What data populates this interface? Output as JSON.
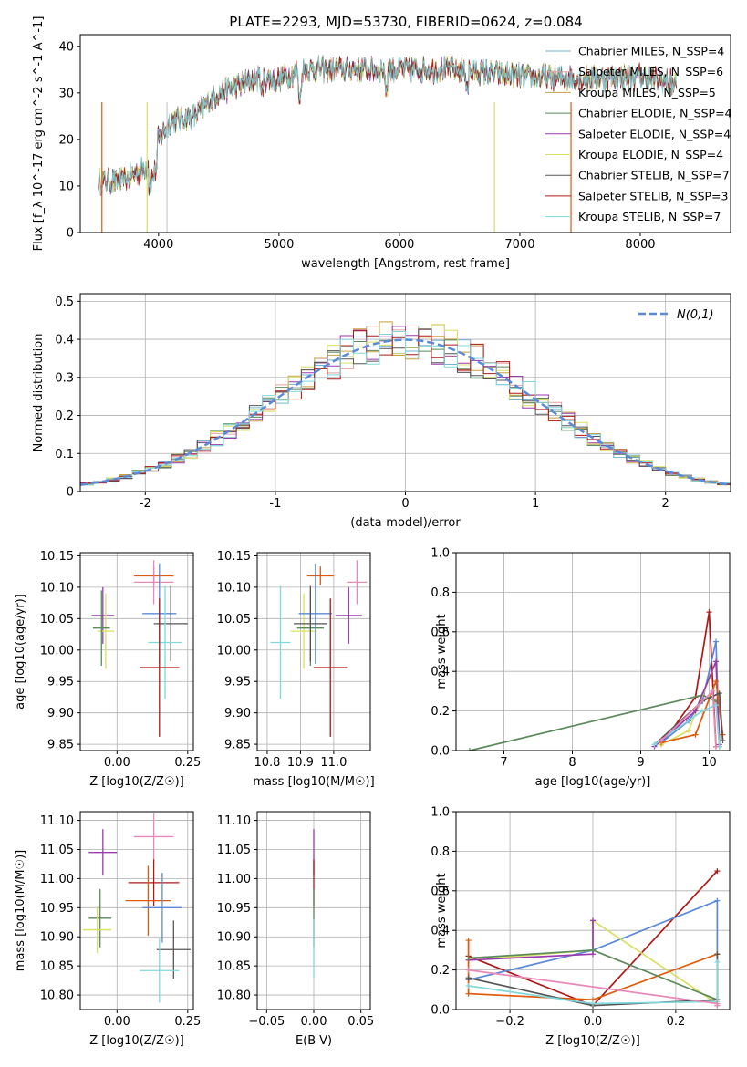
{
  "figure_title": "PLATE=2293, MJD=53730, FIBERID=0624, z=0.084",
  "colors": [
    "#72b6d2",
    "#e8a0a0",
    "#c8a040",
    "#5b8a5b",
    "#9a3ab0",
    "#d8e060",
    "#555555",
    "#b01818",
    "#80d8dc"
  ],
  "chart_data": [
    {
      "id": "spectrum",
      "type": "line",
      "title": "PLATE=2293, MJD=53730, FIBERID=0624, z=0.084",
      "xlabel": "wavelength [Angstrom, rest frame]",
      "ylabel": "Flux [f_λ 10^-17 erg cm^-2 s^-1 A^-1]",
      "xlim": [
        3350,
        8750
      ],
      "ylim": [
        0,
        42.5
      ],
      "xticks": [
        4000,
        5000,
        6000,
        7000,
        8000
      ],
      "yticks": [
        0,
        10,
        20,
        30,
        40
      ],
      "grid": false,
      "legend_position": "upper right",
      "continuum": {
        "x": [
          3500,
          3700,
          3900,
          4000,
          4100,
          4300,
          4500,
          4800,
          5000,
          5200,
          5500,
          6000,
          6500,
          7000,
          7500,
          8000,
          8300
        ],
        "y": [
          11,
          11,
          14,
          20,
          24,
          25,
          30,
          33,
          33,
          35,
          35,
          35,
          35,
          33.5,
          33,
          33.5,
          32
        ]
      },
      "series": [
        {
          "name": "Chabrier MILES, N_SSP=4",
          "color": "#72b6d2"
        },
        {
          "name": "Salpeter MILES, N_SSP=6",
          "color": "#e8a0a0"
        },
        {
          "name": "Kroupa MILES, N_SSP=5",
          "color": "#c8a040"
        },
        {
          "name": "Chabrier ELODIE, N_SSP=4",
          "color": "#5b8a5b"
        },
        {
          "name": "Salpeter ELODIE, N_SSP=4",
          "color": "#9a3ab0"
        },
        {
          "name": "Kroupa ELODIE, N_SSP=4",
          "color": "#d8e060"
        },
        {
          "name": "Chabrier STELIB, N_SSP=7",
          "color": "#555555"
        },
        {
          "name": "Salpeter STELIB, N_SSP=3",
          "color": "#b01818"
        },
        {
          "name": "Kroupa STELIB, N_SSP=7",
          "color": "#80d8dc"
        }
      ]
    },
    {
      "id": "residuals",
      "type": "line",
      "xlabel": "(data-model)/error",
      "ylabel": "Normed distribution",
      "xlim": [
        -2.5,
        2.5
      ],
      "ylim": [
        0,
        0.52
      ],
      "xticks": [
        -2,
        -1,
        0,
        1,
        2
      ],
      "yticks": [
        0.0,
        0.1,
        0.2,
        0.3,
        0.4,
        0.5
      ],
      "grid": true,
      "legend": "N(0,1)",
      "legend_position": "upper right",
      "reference_curve": {
        "name": "N(0,1)",
        "mean": 0,
        "sigma": 1,
        "color": "#5b8ad8"
      },
      "histogram_bin_width": 0.1,
      "series_colors": [
        "#72b6d2",
        "#e8a0a0",
        "#c8a040",
        "#5b8a5b",
        "#9a3ab0",
        "#d8e060",
        "#555555",
        "#b01818",
        "#80d8dc"
      ]
    },
    {
      "id": "age_vs_Z",
      "type": "scatter",
      "xlabel": "Z [log10(Z/Z☉)]",
      "ylabel": "age [log10(age/yr)]",
      "xlim": [
        -0.13,
        0.27
      ],
      "ylim": [
        9.84,
        10.155
      ],
      "xticks": [
        "0.00",
        "0.25"
      ],
      "yticks": [
        "9.85",
        "9.90",
        "9.95",
        "10.00",
        "10.05",
        "10.10",
        "10.15"
      ],
      "grid": true,
      "points": [
        {
          "x": 0.13,
          "y": 10.118,
          "xerr": 0.07,
          "yerr": 0.015,
          "color": "#e05a0a"
        },
        {
          "x": 0.13,
          "y": 10.108,
          "xerr": 0.07,
          "yerr": 0.035,
          "color": "#e888b8"
        },
        {
          "x": -0.05,
          "y": 10.055,
          "xerr": 0.04,
          "yerr": 0.045,
          "color": "#9a3ab0"
        },
        {
          "x": -0.04,
          "y": 10.03,
          "xerr": 0.03,
          "yerr": 0.06,
          "color": "#d8e060"
        },
        {
          "x": -0.055,
          "y": 10.035,
          "xerr": 0.03,
          "yerr": 0.06,
          "color": "#5b8a5b"
        },
        {
          "x": 0.15,
          "y": 10.058,
          "xerr": 0.06,
          "yerr": 0.08,
          "color": "#5b8ad8"
        },
        {
          "x": 0.19,
          "y": 10.042,
          "xerr": 0.06,
          "yerr": 0.06,
          "color": "#555555"
        },
        {
          "x": 0.17,
          "y": 10.012,
          "xerr": 0.06,
          "yerr": 0.09,
          "color": "#80d8dc"
        },
        {
          "x": 0.15,
          "y": 9.972,
          "xerr": 0.07,
          "yerr": 0.11,
          "color": "#b01818"
        }
      ]
    },
    {
      "id": "age_vs_mass",
      "type": "scatter",
      "xlabel": "mass [log10(M/M☉)]",
      "ylabel": "",
      "xlim": [
        10.77,
        11.11
      ],
      "ylim": [
        9.84,
        10.155
      ],
      "xticks": [
        "10.8",
        "10.9",
        "11.0"
      ],
      "yticks": [
        "9.85",
        "9.90",
        "9.95",
        "10.00",
        "10.05",
        "10.10",
        "10.15"
      ],
      "grid": true,
      "points": [
        {
          "x": 10.96,
          "y": 10.118,
          "xerr": 0.04,
          "yerr": 0.015,
          "color": "#e05a0a"
        },
        {
          "x": 11.07,
          "y": 10.108,
          "xerr": 0.03,
          "yerr": 0.035,
          "color": "#e888b8"
        },
        {
          "x": 11.045,
          "y": 10.055,
          "xerr": 0.04,
          "yerr": 0.045,
          "color": "#9a3ab0"
        },
        {
          "x": 10.91,
          "y": 10.03,
          "xerr": 0.04,
          "yerr": 0.06,
          "color": "#d8e060"
        },
        {
          "x": 10.93,
          "y": 10.035,
          "xerr": 0.04,
          "yerr": 0.06,
          "color": "#5b8a5b"
        },
        {
          "x": 10.945,
          "y": 10.058,
          "xerr": 0.05,
          "yerr": 0.08,
          "color": "#5b8ad8"
        },
        {
          "x": 10.93,
          "y": 10.042,
          "xerr": 0.05,
          "yerr": 0.06,
          "color": "#555555"
        },
        {
          "x": 10.84,
          "y": 10.012,
          "xerr": 0.03,
          "yerr": 0.09,
          "color": "#80d8dc"
        },
        {
          "x": 10.99,
          "y": 9.972,
          "xerr": 0.05,
          "yerr": 0.11,
          "color": "#b01818"
        }
      ]
    },
    {
      "id": "mass_weight_vs_age",
      "type": "line",
      "xlabel": "age [log10(age/yr)]",
      "ylabel": "mass weight",
      "xlim": [
        6.3,
        10.3
      ],
      "ylim": [
        0,
        1.0
      ],
      "xticks": [
        7,
        8,
        9,
        10
      ],
      "yticks": [
        "0.0",
        "0.2",
        "0.4",
        "0.6",
        "0.8",
        "1.0"
      ],
      "grid": true,
      "series": [
        {
          "color": "#b01818",
          "x": [
            9.3,
            9.8,
            10.0,
            10.1
          ],
          "y": [
            0.03,
            0.27,
            0.7,
            0.02
          ]
        },
        {
          "color": "#5b8ad8",
          "x": [
            9.3,
            9.7,
            9.9,
            10.1,
            10.15
          ],
          "y": [
            0.04,
            0.15,
            0.25,
            0.55,
            0.02
          ]
        },
        {
          "color": "#5b8a5b",
          "x": [
            6.5,
            9.9,
            10.1,
            10.15
          ],
          "y": [
            0.0,
            0.28,
            0.25,
            0.02
          ]
        },
        {
          "color": "#d8e060",
          "x": [
            9.3,
            9.7,
            10.1,
            10.15
          ],
          "y": [
            0.03,
            0.1,
            0.45,
            0.02
          ]
        },
        {
          "color": "#9a3ab0",
          "x": [
            9.2,
            9.8,
            10.1,
            10.15
          ],
          "y": [
            0.02,
            0.2,
            0.45,
            0.03
          ]
        },
        {
          "color": "#e05a0a",
          "x": [
            9.3,
            9.8,
            10.1,
            10.2
          ],
          "y": [
            0.04,
            0.08,
            0.35,
            0.08
          ]
        },
        {
          "color": "#555555",
          "x": [
            9.2,
            9.9,
            10.15,
            10.2
          ],
          "y": [
            0.03,
            0.25,
            0.29,
            0.05
          ]
        },
        {
          "color": "#80d8dc",
          "x": [
            9.2,
            9.9,
            10.1,
            10.15
          ],
          "y": [
            0.03,
            0.2,
            0.23,
            0.02
          ]
        },
        {
          "color": "#e888b8",
          "x": [
            9.3,
            10.05,
            10.1
          ],
          "y": [
            0.05,
            0.3,
            0.02
          ]
        }
      ]
    },
    {
      "id": "mass_vs_Z",
      "type": "scatter",
      "xlabel": "Z [log10(Z/Z☉)]",
      "ylabel": "mass [log10(M/M☉)]",
      "xlim": [
        -0.13,
        0.27
      ],
      "ylim": [
        10.775,
        11.115
      ],
      "xticks": [
        "0.00",
        "0.25"
      ],
      "yticks": [
        "10.80",
        "10.85",
        "10.90",
        "10.95",
        "11.00",
        "11.05",
        "11.10"
      ],
      "grid": true,
      "points": [
        {
          "x": 0.13,
          "y": 11.072,
          "xerr": 0.07,
          "yerr": 0.04,
          "color": "#e888b8"
        },
        {
          "x": -0.05,
          "y": 11.045,
          "xerr": 0.05,
          "yerr": 0.04,
          "color": "#9a3ab0"
        },
        {
          "x": 0.13,
          "y": 10.993,
          "xerr": 0.09,
          "yerr": 0.04,
          "color": "#b01818"
        },
        {
          "x": 0.11,
          "y": 10.962,
          "xerr": 0.08,
          "yerr": 0.06,
          "color": "#e05a0a"
        },
        {
          "x": 0.16,
          "y": 10.95,
          "xerr": 0.07,
          "yerr": 0.06,
          "color": "#5b8ad8"
        },
        {
          "x": -0.06,
          "y": 10.932,
          "xerr": 0.04,
          "yerr": 0.05,
          "color": "#5b8a5b"
        },
        {
          "x": -0.07,
          "y": 10.912,
          "xerr": 0.05,
          "yerr": 0.04,
          "color": "#d8e060"
        },
        {
          "x": 0.2,
          "y": 10.878,
          "xerr": 0.06,
          "yerr": 0.05,
          "color": "#555555"
        },
        {
          "x": 0.15,
          "y": 10.842,
          "xerr": 0.07,
          "yerr": 0.055,
          "color": "#80d8dc"
        }
      ]
    },
    {
      "id": "mass_vs_ebv",
      "type": "scatter",
      "xlabel": "E(B-V)",
      "ylabel": "",
      "xlim": [
        -0.06,
        0.06
      ],
      "ylim": [
        10.775,
        11.115
      ],
      "xticks": [
        "−0.05",
        "0.00",
        "0.05"
      ],
      "yticks": [
        "10.80",
        "10.85",
        "10.90",
        "10.95",
        "11.00",
        "11.05",
        "11.10"
      ],
      "grid": true,
      "points": [
        {
          "x": 0.0,
          "y": 11.045,
          "xerr": 0.0,
          "yerr": 0.04,
          "color": "#9a3ab0"
        },
        {
          "x": 0.0,
          "y": 10.993,
          "xerr": 0.0,
          "yerr": 0.04,
          "color": "#b01818"
        },
        {
          "x": 0.0,
          "y": 10.932,
          "xerr": 0.0,
          "yerr": 0.05,
          "color": "#5b8a5b"
        },
        {
          "x": 0.0,
          "y": 10.88,
          "xerr": 0.0,
          "yerr": 0.05,
          "color": "#80d8dc"
        }
      ]
    },
    {
      "id": "mass_weight_vs_Z",
      "type": "line",
      "xlabel": "Z [log10(Z/Z☉)]",
      "ylabel": "mass weight",
      "xlim": [
        -0.33,
        0.33
      ],
      "ylim": [
        0,
        1.0
      ],
      "xticks": [
        "−0.2",
        "0.0",
        "0.2"
      ],
      "yticks": [
        "0.0",
        "0.2",
        "0.4",
        "0.6",
        "0.8",
        "1.0"
      ],
      "grid": true,
      "series": [
        {
          "color": "#b01818",
          "x": [
            -0.3,
            0.0,
            0.3
          ],
          "y": [
            0.27,
            0.02,
            0.7
          ]
        },
        {
          "color": "#5b8ad8",
          "x": [
            -0.3,
            0.0,
            0.3,
            0.3
          ],
          "y": [
            0.15,
            0.3,
            0.55,
            0.02
          ]
        },
        {
          "color": "#d8e060",
          "x": [
            -0.3,
            0.0,
            0.0,
            0.3
          ],
          "y": [
            0.25,
            0.3,
            0.45,
            0.03
          ]
        },
        {
          "color": "#9a3ab0",
          "x": [
            -0.3,
            0.0,
            0.0
          ],
          "y": [
            0.25,
            0.28,
            0.45
          ]
        },
        {
          "color": "#e05a0a",
          "x": [
            -0.3,
            -0.3,
            0.0,
            0.3
          ],
          "y": [
            0.35,
            0.08,
            0.05,
            0.28
          ]
        },
        {
          "color": "#5b8a5b",
          "x": [
            -0.3,
            0.0,
            0.3
          ],
          "y": [
            0.26,
            0.3,
            0.05
          ]
        },
        {
          "color": "#555555",
          "x": [
            -0.3,
            0.0,
            0.3,
            0.3
          ],
          "y": [
            0.16,
            0.02,
            0.05,
            0.28
          ]
        },
        {
          "color": "#80d8dc",
          "x": [
            -0.3,
            0.0,
            0.3,
            0.3
          ],
          "y": [
            0.12,
            0.03,
            0.04,
            0.24
          ]
        },
        {
          "color": "#e888b8",
          "x": [
            -0.3,
            0.3,
            0.3
          ],
          "y": [
            0.2,
            0.03,
            0.02
          ]
        }
      ]
    }
  ]
}
